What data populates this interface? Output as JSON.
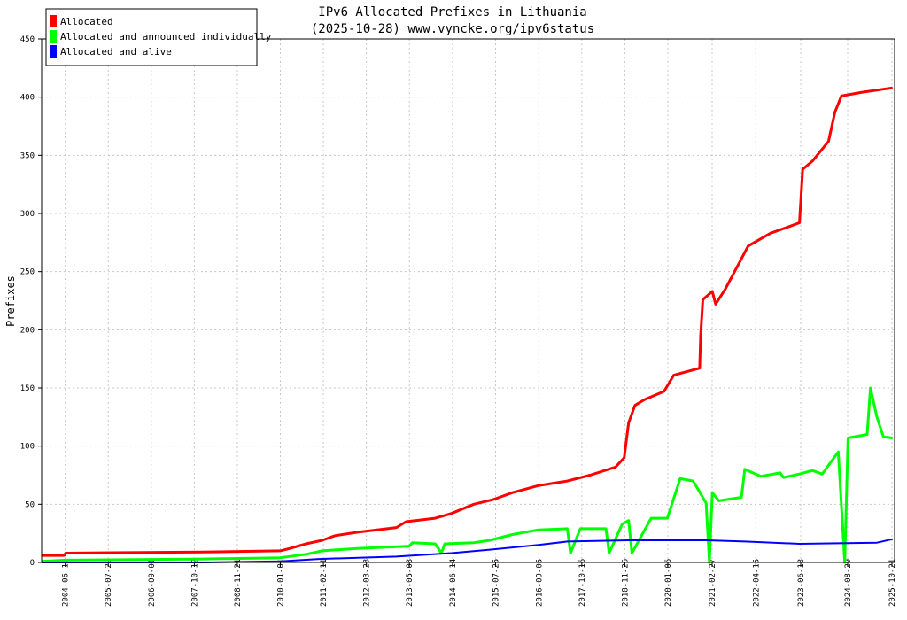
{
  "chart_data": {
    "type": "line",
    "title": "IPv6 Allocated Prefixes in Lithuania",
    "subtitle": "(2025-10-28) www.vyncke.org/ipv6status",
    "xlabel": "",
    "ylabel": "Prefixes",
    "ylim": [
      0,
      450
    ],
    "yticks": [
      0,
      50,
      100,
      150,
      200,
      250,
      300,
      350,
      400,
      450
    ],
    "xlim": [
      "2003-11-01",
      "2025-11-15"
    ],
    "xticks": [
      "2004-06-11",
      "2005-07-22",
      "2006-09-01",
      "2007-10-12",
      "2008-11-21",
      "2010-01-01",
      "2011-02-11",
      "2012-03-23",
      "2013-05-03",
      "2014-06-14",
      "2015-07-25",
      "2016-09-05",
      "2017-10-16",
      "2018-11-26",
      "2020-01-06",
      "2021-02-27",
      "2022-04-15",
      "2023-06-13",
      "2024-08-29",
      "2025-10-21"
    ],
    "grid": true,
    "legend_position": "top-left",
    "series": [
      {
        "name": "Allocated",
        "color": "#ff0000",
        "points": [
          [
            "2003-11-01",
            6
          ],
          [
            "2004-06-01",
            6
          ],
          [
            "2004-06-15",
            8
          ],
          [
            "2008-01-01",
            9
          ],
          [
            "2010-01-01",
            10
          ],
          [
            "2010-04-01",
            12
          ],
          [
            "2010-09-01",
            16
          ],
          [
            "2011-02-01",
            19
          ],
          [
            "2011-06-01",
            23
          ],
          [
            "2012-01-01",
            26
          ],
          [
            "2013-01-01",
            30
          ],
          [
            "2013-04-01",
            35
          ],
          [
            "2014-01-01",
            38
          ],
          [
            "2014-06-01",
            42
          ],
          [
            "2015-01-01",
            50
          ],
          [
            "2015-07-01",
            54
          ],
          [
            "2016-01-01",
            60
          ],
          [
            "2016-09-01",
            66
          ],
          [
            "2017-06-01",
            70
          ],
          [
            "2018-01-01",
            75
          ],
          [
            "2018-09-01",
            82
          ],
          [
            "2018-11-20",
            90
          ],
          [
            "2019-01-01",
            120
          ],
          [
            "2019-03-01",
            135
          ],
          [
            "2019-06-01",
            140
          ],
          [
            "2019-12-01",
            147
          ],
          [
            "2020-03-01",
            161
          ],
          [
            "2020-11-01",
            167
          ],
          [
            "2020-11-10",
            195
          ],
          [
            "2020-12-01",
            226
          ],
          [
            "2021-03-01",
            233
          ],
          [
            "2021-04-01",
            222
          ],
          [
            "2021-07-01",
            235
          ],
          [
            "2021-11-01",
            256
          ],
          [
            "2022-02-01",
            272
          ],
          [
            "2022-09-01",
            283
          ],
          [
            "2023-02-01",
            288
          ],
          [
            "2023-06-01",
            292
          ],
          [
            "2023-07-01",
            338
          ],
          [
            "2023-10-01",
            345
          ],
          [
            "2024-03-01",
            362
          ],
          [
            "2024-05-01",
            387
          ],
          [
            "2024-07-01",
            401
          ],
          [
            "2025-01-01",
            404
          ],
          [
            "2025-10-28",
            408
          ]
        ]
      },
      {
        "name": "Allocated and announced individually",
        "color": "#00ff00",
        "points": [
          [
            "2003-11-01",
            1
          ],
          [
            "2004-06-15",
            2
          ],
          [
            "2008-01-01",
            3
          ],
          [
            "2010-01-01",
            4
          ],
          [
            "2010-09-01",
            7
          ],
          [
            "2011-02-01",
            10
          ],
          [
            "2012-01-01",
            12
          ],
          [
            "2013-05-01",
            14
          ],
          [
            "2013-06-01",
            17
          ],
          [
            "2014-01-01",
            16
          ],
          [
            "2014-03-01",
            8
          ],
          [
            "2014-04-01",
            16
          ],
          [
            "2015-01-01",
            17
          ],
          [
            "2015-06-01",
            19
          ],
          [
            "2016-01-01",
            24
          ],
          [
            "2016-09-01",
            28
          ],
          [
            "2017-06-01",
            29
          ],
          [
            "2017-07-01",
            8
          ],
          [
            "2017-10-01",
            29
          ],
          [
            "2018-06-01",
            29
          ],
          [
            "2018-07-01",
            8
          ],
          [
            "2018-11-01",
            33
          ],
          [
            "2019-01-01",
            36
          ],
          [
            "2019-02-01",
            8
          ],
          [
            "2019-08-01",
            38
          ],
          [
            "2020-01-01",
            38
          ],
          [
            "2020-05-01",
            72
          ],
          [
            "2020-09-01",
            70
          ],
          [
            "2021-01-01",
            51
          ],
          [
            "2021-02-01",
            0
          ],
          [
            "2021-03-01",
            60
          ],
          [
            "2021-05-01",
            53
          ],
          [
            "2021-12-01",
            56
          ],
          [
            "2022-01-01",
            80
          ],
          [
            "2022-06-01",
            74
          ],
          [
            "2022-12-01",
            77
          ],
          [
            "2023-01-01",
            73
          ],
          [
            "2023-06-01",
            76
          ],
          [
            "2023-10-01",
            79
          ],
          [
            "2024-01-01",
            76
          ],
          [
            "2024-06-01",
            95
          ],
          [
            "2024-08-01",
            0
          ],
          [
            "2024-09-01",
            107
          ],
          [
            "2025-03-01",
            110
          ],
          [
            "2025-04-01",
            150
          ],
          [
            "2025-06-01",
            125
          ],
          [
            "2025-08-01",
            108
          ],
          [
            "2025-10-28",
            107
          ]
        ]
      },
      {
        "name": "Allocated and alive",
        "color": "#0000ff",
        "points": [
          [
            "2003-11-01",
            0
          ],
          [
            "2008-01-01",
            0
          ],
          [
            "2010-01-01",
            1
          ],
          [
            "2011-01-01",
            3
          ],
          [
            "2013-01-01",
            5
          ],
          [
            "2014-06-01",
            8
          ],
          [
            "2015-06-01",
            11
          ],
          [
            "2016-09-01",
            15
          ],
          [
            "2017-06-01",
            18
          ],
          [
            "2019-01-01",
            19
          ],
          [
            "2021-01-01",
            19
          ],
          [
            "2022-01-01",
            18
          ],
          [
            "2023-06-01",
            16
          ],
          [
            "2025-06-01",
            17
          ],
          [
            "2025-10-28",
            20
          ]
        ]
      }
    ]
  }
}
